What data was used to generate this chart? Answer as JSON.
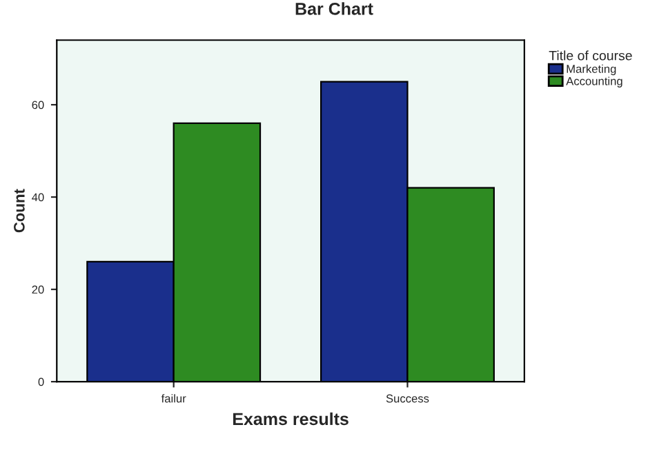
{
  "chart_data": {
    "type": "bar",
    "title": "Bar Chart",
    "xlabel": "Exams results",
    "ylabel": "Count",
    "legend_title": "Title of course",
    "categories": [
      "failur",
      "Success"
    ],
    "series": [
      {
        "name": "Marketing",
        "color": "#1a2f8c",
        "values": [
          26,
          65
        ]
      },
      {
        "name": "Accounting",
        "color": "#2e8b22",
        "values": [
          56,
          42
        ]
      }
    ],
    "ylim": [
      0,
      74
    ],
    "yticks": [
      0,
      20,
      40,
      60
    ],
    "grid": false,
    "legend": "top right"
  }
}
